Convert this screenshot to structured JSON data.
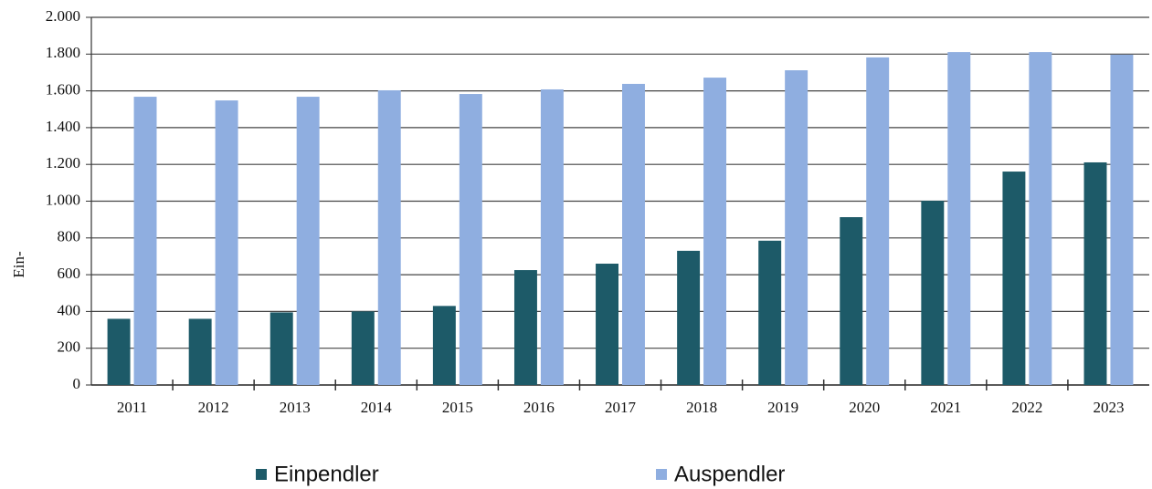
{
  "chart_data": {
    "type": "bar",
    "y_label": "Ein-",
    "categories": [
      "2011",
      "2012",
      "2013",
      "2014",
      "2015",
      "2016",
      "2017",
      "2018",
      "2019",
      "2020",
      "2021",
      "2022",
      "2023"
    ],
    "series": [
      {
        "name": "Einpendler",
        "color": "#1d5a68",
        "values": [
          360,
          360,
          395,
          400,
          430,
          625,
          660,
          730,
          785,
          913,
          1002,
          1161,
          1211
        ]
      },
      {
        "name": "Auspendler",
        "color": "#8faee0",
        "values": [
          1568,
          1548,
          1568,
          1603,
          1583,
          1608,
          1638,
          1672,
          1712,
          1782,
          1811,
          1811,
          1797
        ]
      }
    ],
    "ylim": [
      0,
      2000
    ],
    "yticks": [
      0,
      200,
      400,
      600,
      800,
      {
        "value": 1000,
        "label": "1.000"
      },
      {
        "value": 1200,
        "label": "1.200"
      },
      {
        "value": 1400,
        "label": "1.400"
      },
      {
        "value": 1600,
        "label": "1.600"
      },
      {
        "value": 1800,
        "label": "1.800"
      },
      {
        "value": 2000,
        "label": "2.000"
      }
    ],
    "grid": true,
    "legend": "bottom"
  }
}
